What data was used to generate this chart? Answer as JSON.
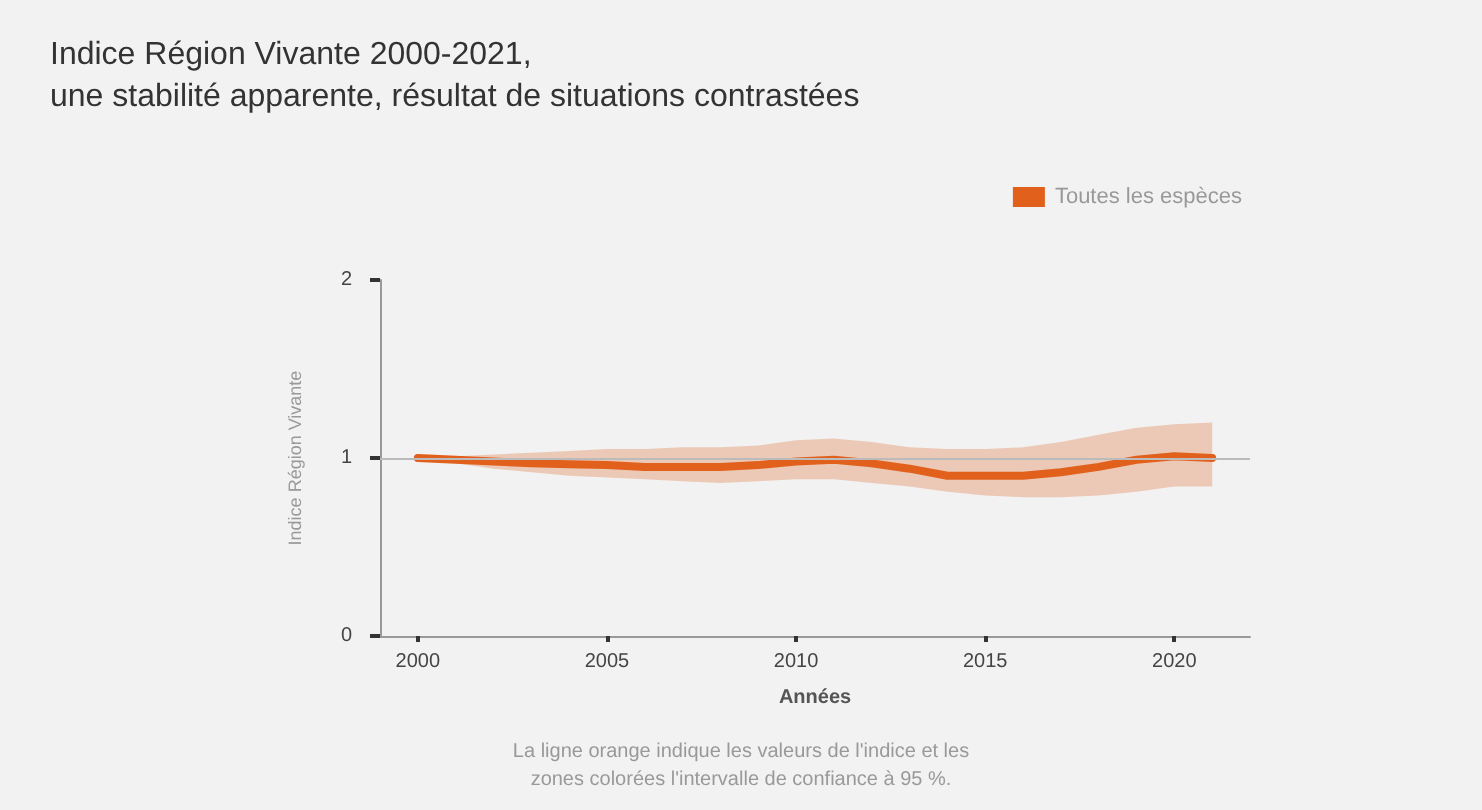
{
  "chart_data": {
    "type": "line",
    "title": "Indice Région Vivante 2000-2021,\nune stabilité apparente, résultat de situations contrastées",
    "xlabel": "Années",
    "ylabel": "Indice Région Vivante",
    "x": [
      2000,
      2001,
      2002,
      2003,
      2004,
      2005,
      2006,
      2007,
      2008,
      2009,
      2010,
      2011,
      2012,
      2013,
      2014,
      2015,
      2016,
      2017,
      2018,
      2019,
      2020,
      2021
    ],
    "series": [
      {
        "name": "Toutes les espèces",
        "color": "#e0601c",
        "values": [
          1.0,
          0.99,
          0.98,
          0.97,
          0.965,
          0.96,
          0.95,
          0.95,
          0.95,
          0.96,
          0.98,
          0.99,
          0.97,
          0.94,
          0.9,
          0.9,
          0.9,
          0.92,
          0.95,
          0.99,
          1.01,
          1.0
        ],
        "lower": [
          1.0,
          0.97,
          0.94,
          0.92,
          0.9,
          0.89,
          0.88,
          0.87,
          0.86,
          0.87,
          0.88,
          0.88,
          0.86,
          0.84,
          0.81,
          0.79,
          0.78,
          0.78,
          0.79,
          0.81,
          0.84,
          0.84
        ],
        "upper": [
          1.0,
          1.01,
          1.02,
          1.03,
          1.04,
          1.05,
          1.05,
          1.06,
          1.06,
          1.07,
          1.1,
          1.11,
          1.09,
          1.06,
          1.05,
          1.05,
          1.06,
          1.09,
          1.13,
          1.17,
          1.19,
          1.2
        ]
      }
    ],
    "xlim": [
      1999,
      2022
    ],
    "xticks": [
      2000,
      2005,
      2010,
      2015,
      2020
    ],
    "ylim": [
      0,
      2
    ],
    "yticks": [
      0,
      1,
      2
    ],
    "ref_lines": [
      {
        "axis": "y",
        "value": 1,
        "color": "#bbbbbb"
      }
    ],
    "legend": "top right",
    "grid": false,
    "marker": "none",
    "line_style": "solid",
    "annotations": [
      "La ligne orange indique les valeurs de l'indice et les\nzones colorées l'intervalle de confiance à 95 %."
    ]
  }
}
